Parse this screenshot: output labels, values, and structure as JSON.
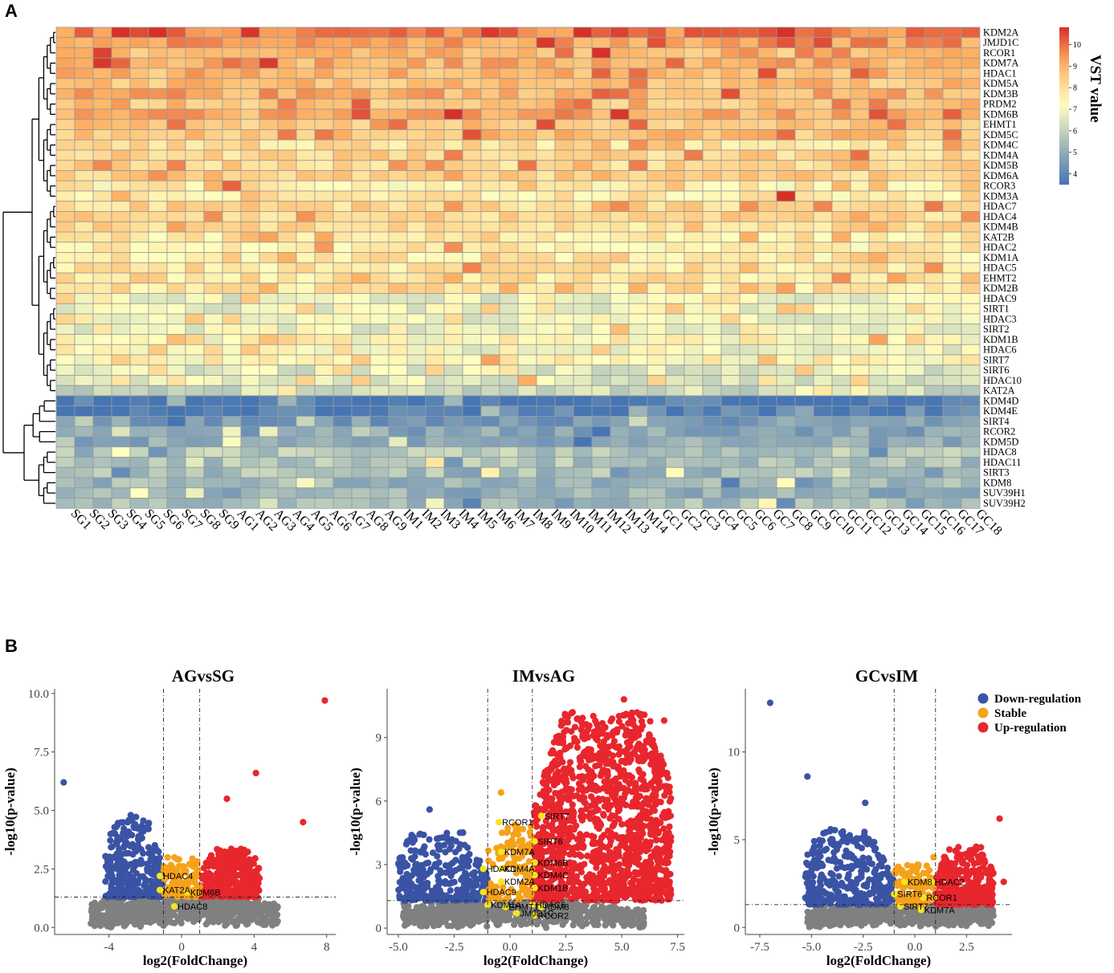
{
  "panels": {
    "a": "A",
    "b": "B"
  },
  "chart_data": [
    {
      "type": "heatmap",
      "panel": "A",
      "genes": [
        "KDM2A",
        "JMJD1C",
        "RCOR1",
        "KDM7A",
        "HDAC1",
        "KDM5A",
        "KDM3B",
        "PRDM2",
        "KDM6B",
        "EHMT1",
        "KDM5C",
        "KDM4C",
        "KDM4A",
        "KDM5B",
        "KDM6A",
        "RCOR3",
        "KDM3A",
        "HDAC7",
        "HDAC4",
        "KDM4B",
        "KAT2B",
        "HDAC2",
        "KDM1A",
        "HDAC5",
        "EHMT2",
        "KDM2B",
        "HDAC9",
        "SIRT1",
        "HDAC3",
        "SIRT2",
        "KDM1B",
        "HDAC6",
        "SIRT7",
        "SIRT6",
        "HDAC10",
        "KAT2A",
        "KDM4D",
        "KDM4E",
        "SIRT4",
        "RCOR2",
        "KDM5D",
        "HDAC8",
        "HDAC11",
        "SIRT3",
        "KDM8",
        "SUV39H1",
        "SUV39H2"
      ],
      "samples": [
        "SG1",
        "SG2",
        "SG3",
        "SG4",
        "SG5",
        "SG6",
        "SG7",
        "SG8",
        "SG9",
        "AG1",
        "AG2",
        "AG3",
        "AG4",
        "AG5",
        "AG6",
        "AG7",
        "AG8",
        "AG9",
        "IM1",
        "IM2",
        "IM3",
        "IM4",
        "IM5",
        "IM6",
        "IM7",
        "IM8",
        "IM9",
        "IM10",
        "IM11",
        "IM12",
        "IM13",
        "IM14",
        "GC1",
        "GC2",
        "GC3",
        "GC4",
        "GC5",
        "GC6",
        "GC7",
        "GC8",
        "GC9",
        "GC10",
        "GC11",
        "GC12",
        "GC13",
        "GC14",
        "GC15",
        "GC16",
        "GC17",
        "GC18"
      ],
      "gene_mean_vst": [
        9.8,
        9.4,
        8.8,
        9.0,
        8.9,
        8.7,
        9.0,
        8.6,
        9.1,
        8.6,
        8.7,
        8.0,
        8.2,
        8.2,
        8.3,
        7.6,
        7.7,
        8.2,
        8.2,
        8.1,
        7.7,
        7.6,
        7.7,
        7.9,
        7.8,
        7.9,
        6.8,
        6.9,
        6.9,
        6.9,
        7.3,
        7.0,
        7.4,
        6.6,
        6.6,
        6.2,
        3.6,
        3.8,
        4.6,
        4.8,
        4.9,
        5.7,
        5.6,
        5.5,
        5.3,
        5.1,
        5.4
      ],
      "colorbar": {
        "title": "VST value",
        "ticks": [
          "4",
          "5",
          "6",
          "7",
          "8",
          "9",
          "10"
        ],
        "range": [
          3.5,
          10.8
        ]
      },
      "colors": {
        "low": "#4575b4",
        "mid": "#ffffbf",
        "high": "#d73027"
      }
    },
    {
      "type": "scatter",
      "title": "AGvsSG",
      "xlabel": "log2(FoldChange)",
      "ylabel": "-log10(p-value)",
      "xlim": [
        -7,
        8.5
      ],
      "ylim": [
        -0.3,
        10.2
      ],
      "xticks": [
        "-4",
        "0",
        "4",
        "8"
      ],
      "xtick_values": [
        -4,
        0,
        4,
        8
      ],
      "yticks": [
        "0.0",
        "2.5",
        "5.0",
        "7.5",
        "10.0"
      ],
      "ytick_values": [
        0,
        2.5,
        5,
        7.5,
        10
      ],
      "vlines": [
        -1,
        1
      ],
      "hline": 1.3,
      "cloud": {
        "down_xmin": -4.2,
        "up_xmax": 4.3,
        "down_ymax": 4.8,
        "up_ymax": 3.4,
        "gray_xrange": [
          -5,
          5.3
        ]
      },
      "outliers": [
        {
          "x": -6.5,
          "y": 6.2,
          "group": "down"
        },
        {
          "x": -2.8,
          "y": 4.8,
          "group": "down"
        },
        {
          "x": 2.5,
          "y": 5.5,
          "group": "up"
        },
        {
          "x": 4.1,
          "y": 6.6,
          "group": "up"
        },
        {
          "x": 6.7,
          "y": 4.5,
          "group": "up"
        },
        {
          "x": 7.9,
          "y": 9.7,
          "group": "up"
        }
      ],
      "genes": [
        {
          "label": "HDAC4",
          "x": -1.2,
          "y": 2.2
        },
        {
          "label": "KAT2A",
          "x": -1.2,
          "y": 1.6
        },
        {
          "label": "KDM6B",
          "x": 0.3,
          "y": 1.5
        },
        {
          "label": "HDAC8",
          "x": -0.4,
          "y": 0.9
        }
      ]
    },
    {
      "type": "scatter",
      "title": "IMvsAG",
      "xlabel": "log2(FoldChange)",
      "ylabel": "-log10(p-value)",
      "xlim": [
        -5.5,
        7.8
      ],
      "ylim": [
        -0.3,
        11.3
      ],
      "xticks": [
        "-5.0",
        "-2.5",
        "0.0",
        "2.5",
        "5.0",
        "7.5"
      ],
      "xtick_values": [
        -5,
        -2.5,
        0,
        2.5,
        5,
        7.5
      ],
      "yticks": [
        "0",
        "3",
        "6",
        "9"
      ],
      "ytick_values": [
        0,
        3,
        6,
        9
      ],
      "vlines": [
        -1,
        1
      ],
      "hline": 1.3,
      "cloud": {
        "down_xmin": -5.0,
        "up_xmax": 7.2,
        "down_ymax": 4.6,
        "up_ymax": 10.2,
        "gray_xrange": [
          -4.8,
          6.0
        ]
      },
      "outliers": [
        {
          "x": -3.6,
          "y": 5.6,
          "group": "down"
        },
        {
          "x": -4.9,
          "y": 2.8,
          "group": "down"
        },
        {
          "x": 6.9,
          "y": 9.8,
          "group": "up"
        },
        {
          "x": 5.1,
          "y": 10.8,
          "group": "up"
        },
        {
          "x": 7.2,
          "y": 4.3,
          "group": "up"
        },
        {
          "x": -0.4,
          "y": 6.4,
          "group": "stable"
        }
      ],
      "genes": [
        {
          "label": "SIRT7",
          "x": 1.4,
          "y": 5.3
        },
        {
          "label": "RCOR1",
          "x": -0.5,
          "y": 5.0
        },
        {
          "label": "SIRT6",
          "x": 1.1,
          "y": 4.1
        },
        {
          "label": "KDM7A",
          "x": -0.4,
          "y": 3.6
        },
        {
          "label": "KDM6B",
          "x": 1.1,
          "y": 3.1
        },
        {
          "label": "HDAC1",
          "x": -1.2,
          "y": 2.8
        },
        {
          "label": "KDM4A",
          "x": -0.4,
          "y": 2.8
        },
        {
          "label": "KDM4C",
          "x": 1.1,
          "y": 2.5
        },
        {
          "label": "KDM2A",
          "x": -0.4,
          "y": 2.2
        },
        {
          "label": "KDM1B",
          "x": 1.1,
          "y": 1.9
        },
        {
          "label": "HDAC9",
          "x": -1.2,
          "y": 1.7
        },
        {
          "label": "KDM1A",
          "x": -1.0,
          "y": 1.1
        },
        {
          "label": "EHMT1",
          "x": -0.2,
          "y": 1.0
        },
        {
          "label": "HDAC6",
          "x": 1.0,
          "y": 1.1
        },
        {
          "label": "KDM8",
          "x": 1.4,
          "y": 1.0
        },
        {
          "label": "JMJD1C",
          "x": 0.3,
          "y": 0.7
        },
        {
          "label": "RCOR2",
          "x": 1.1,
          "y": 0.6
        }
      ]
    },
    {
      "type": "scatter",
      "title": "GCvsIM",
      "xlabel": "log2(FoldChange)",
      "ylabel": "-log10(p-value)",
      "xlim": [
        -8.2,
        4.7
      ],
      "ylim": [
        -0.4,
        13.6
      ],
      "xticks": [
        "-7.5",
        "-5.0",
        "-2.5",
        "0.0",
        "2.5"
      ],
      "xtick_values": [
        -7.5,
        -5,
        -2.5,
        0,
        2.5
      ],
      "yticks": [
        "0",
        "5",
        "10"
      ],
      "ytick_values": [
        0,
        5,
        10
      ],
      "vlines": [
        -1,
        1
      ],
      "hline": 1.3,
      "cloud": {
        "down_xmin": -5.3,
        "up_xmax": 3.8,
        "down_ymax": 5.6,
        "up_ymax": 4.6,
        "gray_xrange": [
          -5.2,
          3.8
        ]
      },
      "outliers": [
        {
          "x": -7.0,
          "y": 12.8,
          "group": "down"
        },
        {
          "x": -5.2,
          "y": 8.6,
          "group": "down"
        },
        {
          "x": -2.4,
          "y": 7.1,
          "group": "down"
        },
        {
          "x": 4.1,
          "y": 6.2,
          "group": "up"
        },
        {
          "x": 4.3,
          "y": 2.6,
          "group": "up"
        },
        {
          "x": 0.9,
          "y": 4.0,
          "group": "stable"
        }
      ],
      "genes": [
        {
          "label": "KDM8",
          "x": -0.5,
          "y": 2.6
        },
        {
          "label": "HDAC2",
          "x": 0.8,
          "y": 2.6
        },
        {
          "label": "SIRT6",
          "x": -1.0,
          "y": 1.9
        },
        {
          "label": "RCOR1",
          "x": 0.4,
          "y": 1.7
        },
        {
          "label": "SIRT7",
          "x": -0.7,
          "y": 1.2
        },
        {
          "label": "KDM7A",
          "x": 0.3,
          "y": 1.0
        }
      ]
    }
  ],
  "legend": {
    "items": [
      {
        "label": "Down-regulation",
        "color": "#3a53a4"
      },
      {
        "label": "Stable",
        "color": "#f5a21b"
      },
      {
        "label": "Up-regulation",
        "color": "#e8262d"
      }
    ]
  },
  "point_colors": {
    "down": "#3a53a4",
    "stable": "#f5a21b",
    "up": "#e8262d",
    "ns": "#808080",
    "highlight": "#f5e61b"
  }
}
